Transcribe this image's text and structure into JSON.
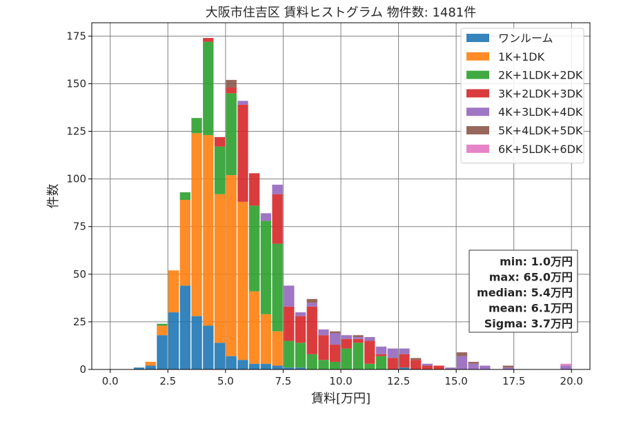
{
  "chart_data": {
    "type": "bar",
    "stacked": true,
    "title": "大阪市住吉区 賃料ヒストグラム  物件数: 1481件",
    "xlabel": "賃料[万円]",
    "ylabel": "件数",
    "xlim": [
      -0.8,
      20.8
    ],
    "ylim": [
      0,
      182
    ],
    "bin_width": 0.5,
    "xticks": [
      0.0,
      2.5,
      5.0,
      7.5,
      10.0,
      12.5,
      15.0,
      17.5,
      20.0
    ],
    "yticks": [
      0,
      25,
      50,
      75,
      100,
      125,
      150,
      175
    ],
    "grid": true,
    "legend_position": "top-right",
    "x": [
      1.0,
      1.5,
      2.0,
      2.5,
      3.0,
      3.5,
      4.0,
      4.5,
      5.0,
      5.5,
      6.0,
      6.5,
      7.0,
      7.5,
      8.0,
      8.5,
      9.0,
      9.5,
      10.0,
      10.5,
      11.0,
      11.5,
      12.0,
      12.5,
      13.0,
      13.5,
      14.0,
      14.5,
      15.0,
      15.5,
      16.0,
      16.5,
      17.0,
      17.5,
      18.0,
      18.5,
      19.0,
      19.5
    ],
    "series": [
      {
        "name": "ワンルーム",
        "color": "#1f77b4",
        "values": [
          1,
          2,
          18,
          30,
          44,
          28,
          23,
          14,
          7,
          5,
          3,
          3,
          2,
          1,
          1,
          0,
          0,
          0,
          0,
          0,
          0,
          0,
          0,
          1,
          0,
          0,
          0,
          0,
          0,
          0,
          0,
          0,
          0,
          0,
          0,
          0,
          0,
          0
        ]
      },
      {
        "name": "1K+1DK",
        "color": "#ff7f0e",
        "values": [
          0,
          2,
          5,
          22,
          45,
          96,
          100,
          78,
          95,
          83,
          38,
          26,
          18,
          0,
          0,
          0,
          0,
          0,
          0,
          0,
          0,
          0,
          0,
          0,
          0,
          0,
          0,
          0,
          0,
          0,
          0,
          0,
          0,
          0,
          0,
          0,
          0,
          0
        ]
      },
      {
        "name": "2K+1LDK+2DK",
        "color": "#2ca02c",
        "values": [
          0,
          0,
          1,
          0,
          4,
          8,
          49,
          25,
          43,
          0,
          45,
          49,
          46,
          14,
          13,
          8,
          5,
          4,
          11,
          14,
          3,
          7,
          0,
          0,
          0,
          0,
          0,
          0,
          0,
          0,
          0,
          0,
          0,
          0,
          0,
          0,
          0,
          0
        ]
      },
      {
        "name": "3K+2LDK+3DK",
        "color": "#d62728",
        "values": [
          0,
          0,
          0,
          0,
          0,
          0,
          2,
          5,
          3,
          51,
          17,
          0,
          26,
          18,
          14,
          25,
          13,
          9,
          5,
          2,
          12,
          1,
          6,
          7,
          5,
          2,
          2,
          0,
          0,
          0,
          0,
          0,
          0,
          0,
          0,
          0,
          0,
          0
        ]
      },
      {
        "name": "4K+3LDK+4DK",
        "color": "#9467bd",
        "values": [
          0,
          0,
          0,
          0,
          0,
          0,
          0,
          0,
          0,
          2,
          0,
          4,
          5,
          11,
          2,
          2,
          3,
          6,
          2,
          1,
          2,
          4,
          5,
          3,
          0,
          1,
          0,
          1,
          7,
          3,
          2,
          0,
          1,
          0,
          0,
          0,
          0,
          2
        ]
      },
      {
        "name": "5K+4LDK+5DK",
        "color": "#8c564b",
        "values": [
          0,
          0,
          0,
          0,
          0,
          0,
          0,
          0,
          4,
          0,
          0,
          0,
          0,
          0,
          0,
          2,
          0,
          1,
          0,
          1,
          0,
          0,
          0,
          0,
          1,
          0,
          0,
          0,
          2,
          1,
          0,
          0,
          1,
          0,
          0,
          0,
          0,
          0
        ]
      },
      {
        "name": "6K+5LDK+6DK",
        "color": "#e377c2",
        "values": [
          0,
          0,
          0,
          0,
          0,
          0,
          0,
          0,
          0,
          0,
          0,
          0,
          0,
          0,
          0,
          0,
          0,
          0,
          0,
          0,
          0,
          0,
          0,
          0,
          0,
          0,
          0,
          0,
          0,
          0,
          0,
          0,
          0,
          0,
          0,
          0,
          0,
          1
        ]
      }
    ],
    "stats": [
      "min: 1.0万円",
      "max: 65.0万円",
      "median: 5.4万円",
      "mean: 6.1万円",
      "Sigma: 3.7万円"
    ]
  }
}
